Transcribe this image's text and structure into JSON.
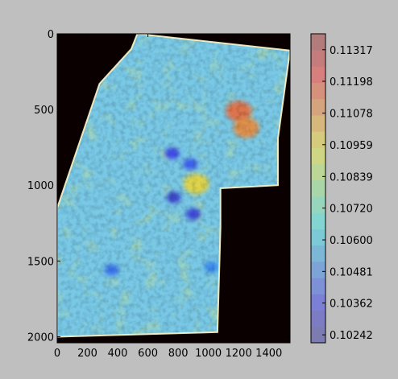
{
  "chart_data": {
    "type": "heatmap",
    "title": "",
    "xlabel": "",
    "ylabel": "",
    "xlim": [
      0,
      1540
    ],
    "ylim": [
      2040,
      0
    ],
    "x_ticks": [
      "0",
      "200",
      "400",
      "600",
      "800",
      "1000",
      "1200",
      "1400"
    ],
    "x_tick_values": [
      0,
      200,
      400,
      600,
      800,
      1000,
      1200,
      1400
    ],
    "y_ticks": [
      "0",
      "500",
      "1000",
      "1500",
      "2000"
    ],
    "y_tick_values": [
      0,
      500,
      1000,
      1500,
      2000
    ],
    "colorbar": {
      "min": 0.10212,
      "max": 0.11377,
      "ticks": [
        "0.11317",
        "0.11198",
        "0.11078",
        "0.10959",
        "0.10839",
        "0.10720",
        "0.10600",
        "0.10481",
        "0.10362",
        "0.10242"
      ],
      "tick_values": [
        0.11317,
        0.11198,
        0.11078,
        0.10959,
        0.10839,
        0.1072,
        0.106,
        0.10481,
        0.10362,
        0.10242
      ],
      "colormap": "jet (alpha overlay)",
      "levels": 19
    },
    "image_region": {
      "polygon": [
        [
          530,
          0
        ],
        [
          1540,
          110
        ],
        [
          1460,
          690
        ],
        [
          1460,
          1000
        ],
        [
          1080,
          1020
        ],
        [
          1080,
          1280
        ],
        [
          1060,
          1970
        ],
        [
          0,
          2000
        ],
        [
          0,
          1150
        ],
        [
          280,
          330
        ],
        [
          490,
          100
        ]
      ]
    },
    "hotspots": [
      {
        "x": 1200,
        "y": 510,
        "value": 0.1115
      },
      {
        "x": 1250,
        "y": 620,
        "value": 0.111
      },
      {
        "x": 920,
        "y": 990,
        "value": 0.1098
      },
      {
        "x": 770,
        "y": 1080,
        "value": 0.103
      },
      {
        "x": 900,
        "y": 1190,
        "value": 0.1032
      },
      {
        "x": 760,
        "y": 790,
        "value": 0.1035
      },
      {
        "x": 880,
        "y": 860,
        "value": 0.104
      },
      {
        "x": 360,
        "y": 1560,
        "value": 0.1044
      },
      {
        "x": 1020,
        "y": 1540,
        "value": 0.1048
      }
    ]
  }
}
